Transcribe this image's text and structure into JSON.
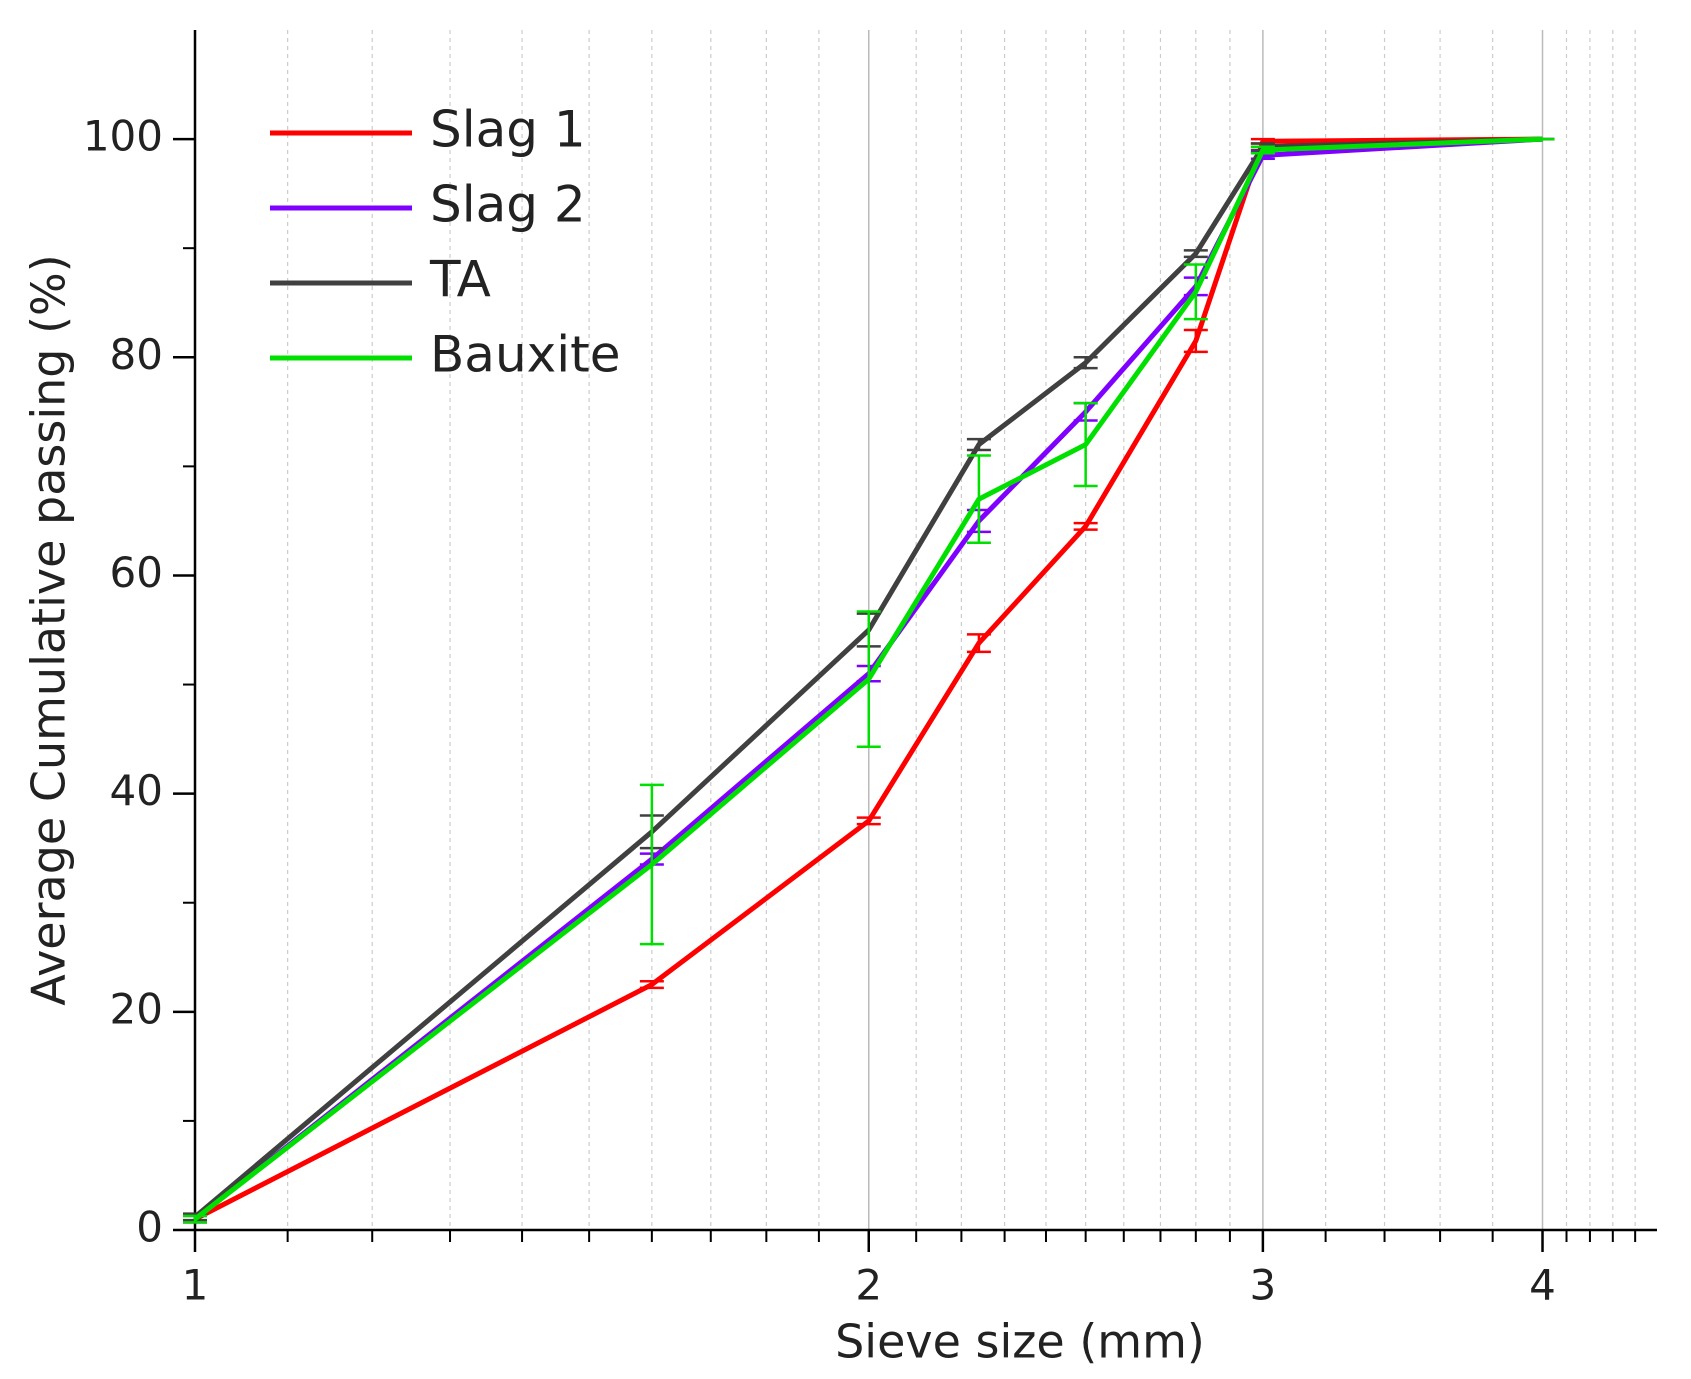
{
  "chart_data": {
    "type": "line",
    "xlabel": "Sieve size (mm)",
    "ylabel": "Average Cumulative passing (%)",
    "x": [
      1,
      1.6,
      2,
      2.24,
      2.5,
      2.8,
      3,
      4
    ],
    "xscale": "log",
    "xlim": [
      1,
      4.5
    ],
    "xticks": [
      1,
      2,
      3,
      4
    ],
    "xminorticks": [
      1.1,
      1.2,
      1.3,
      1.4,
      1.5,
      1.6,
      1.7,
      1.8,
      1.9,
      2.1,
      2.2,
      2.3,
      2.4,
      2.5,
      2.6,
      2.7,
      2.8,
      2.9,
      3.2,
      3.4,
      3.6,
      3.8,
      4.1,
      4.2,
      4.3,
      4.4
    ],
    "ylim": [
      0,
      110
    ],
    "yticks": [
      0,
      20,
      40,
      60,
      80,
      100
    ],
    "yminorticks": [
      10,
      30,
      50,
      70,
      90
    ],
    "grid": true,
    "legend": "upper left",
    "series": [
      {
        "name": "Slag 1",
        "color": "#ff0000",
        "values": [
          1,
          22.5,
          37.5,
          53.8,
          64.5,
          81.5,
          99.8,
          100
        ],
        "errors": [
          0.3,
          0.3,
          0.3,
          0.8,
          0.3,
          1,
          0.2,
          0
        ]
      },
      {
        "name": "Slag 2",
        "color": "#7f00ff",
        "values": [
          1,
          34,
          51,
          65,
          75,
          86.5,
          98.5,
          100
        ],
        "errors": [
          0.3,
          0.5,
          0.7,
          1,
          0.8,
          0.8,
          0.3,
          0
        ]
      },
      {
        "name": "TA",
        "color": "#404040",
        "values": [
          1.2,
          36.5,
          55,
          72,
          79.5,
          89.5,
          99.3,
          100
        ],
        "errors": [
          0.3,
          1.5,
          1.5,
          0.5,
          0.5,
          0.3,
          0.3,
          0
        ]
      },
      {
        "name": "Bauxite",
        "color": "#00e000",
        "values": [
          1,
          33.5,
          50.5,
          67,
          72,
          86,
          99,
          100
        ],
        "errors": [
          0.3,
          7.3,
          6.2,
          4,
          3.8,
          2.5,
          0.3,
          0
        ]
      }
    ]
  }
}
